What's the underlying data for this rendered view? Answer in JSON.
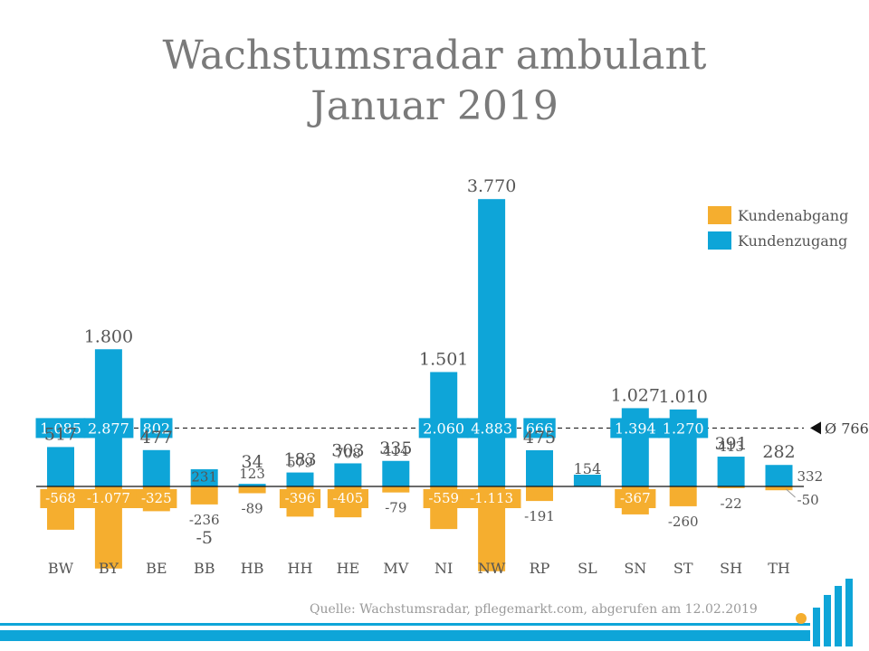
{
  "chart_data": {
    "type": "bar",
    "title": "Wachstumsradar ambulant",
    "subtitle": "Januar 2019",
    "categories": [
      "BW",
      "BY",
      "BE",
      "BB",
      "HB",
      "HH",
      "HE",
      "MV",
      "NI",
      "NW",
      "RP",
      "SL",
      "SN",
      "ST",
      "SH",
      "TH"
    ],
    "series": [
      {
        "name": "Kundenabgang",
        "color": "#f5ae2f",
        "values": [
          -568,
          -1077,
          -325,
          -236,
          -89,
          -396,
          -405,
          -79,
          -559,
          -1113,
          -191,
          0,
          -367,
          -260,
          -22,
          -50
        ],
        "labels": [
          "-568",
          "-1.077",
          "-325",
          "-236",
          "-89",
          "-396",
          "-405",
          "-79",
          "-559",
          "-1.113",
          "-191",
          "",
          "-367",
          "-260",
          "-22",
          "-50"
        ]
      },
      {
        "name": "Kundenzugang",
        "color": "#0ea5d8",
        "values": [
          1085,
          2877,
          802,
          231,
          123,
          579,
          708,
          414,
          2060,
          4883,
          666,
          154,
          1394,
          1270,
          413,
          332
        ],
        "labels": [
          "1.085",
          "2.877",
          "802",
          "231",
          "123",
          "579",
          "708",
          "414",
          "2.060",
          "4.883",
          "666",
          "154",
          "1.394",
          "1.270",
          "413",
          "332"
        ]
      }
    ],
    "net": [
      517,
      1800,
      477,
      -5,
      34,
      183,
      303,
      335,
      1501,
      3770,
      475,
      154,
      1027,
      1010,
      391,
      282
    ],
    "net_labels": [
      "517",
      "1.800",
      "477",
      "-5",
      "34",
      "183",
      "303",
      "335",
      "1.501",
      "3.770",
      "475",
      "",
      "1.027",
      "1.010",
      "391",
      "282"
    ],
    "average": {
      "value": 766,
      "label": "Ø 766"
    },
    "legend_position": "top-right",
    "source": "Quelle: Wachstumsradar, pflegemarkt.com, abgerufen am 12.02.2019"
  }
}
